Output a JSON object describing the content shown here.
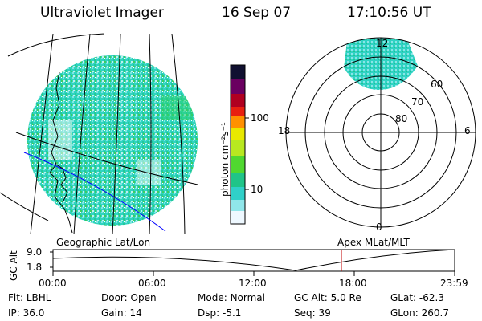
{
  "header": {
    "instrument": "Ultraviolet Imager",
    "date": "16 Sep 07",
    "time": "17:10:56 UT"
  },
  "colorbar": {
    "unit_label": "photon cm⁻²s⁻¹",
    "ticks": [
      {
        "label": "100",
        "value": 100
      },
      {
        "label": "10",
        "value": 10
      }
    ],
    "colors": [
      "#ffffff",
      "#7fe8e8",
      "#2fd0c0",
      "#28c838",
      "#a8e820",
      "#e8e800",
      "#ff9000",
      "#e82010",
      "#b00020",
      "#800040",
      "#400060",
      "#101030"
    ]
  },
  "geo_panel": {
    "label": "Geographic Lat/Lon"
  },
  "polar_panel": {
    "label": "Apex MLat/MLT",
    "lat_labels": [
      "60",
      "70",
      "80"
    ],
    "mlt_labels": {
      "top": "12",
      "left": "18",
      "right": "6",
      "bottom": "0"
    }
  },
  "altitude_plot": {
    "ylabel": "GC Alt",
    "yticks": [
      "9.0",
      "1.8"
    ],
    "xticks": [
      "00:00",
      "06:00",
      "12:00",
      "18:00",
      "23:59"
    ],
    "marker_time": "17:10"
  },
  "info": {
    "flt": {
      "label": "Flt:",
      "value": "LBHL"
    },
    "ip": {
      "label": "IP:",
      "value": "36.0"
    },
    "door": {
      "label": "Door:",
      "value": "Open"
    },
    "gain": {
      "label": "Gain:",
      "value": "14"
    },
    "mode": {
      "label": "Mode:",
      "value": "Normal"
    },
    "dsp": {
      "label": "Dsp:",
      "value": "-5.1"
    },
    "gcalt": {
      "label": "GC Alt:",
      "value": "5.0 Re"
    },
    "seq": {
      "label": "Seq:",
      "value": "39"
    },
    "glat": {
      "label": "GLat:",
      "value": "-62.3"
    },
    "glon": {
      "label": "GLon:",
      "value": "260.7"
    }
  }
}
